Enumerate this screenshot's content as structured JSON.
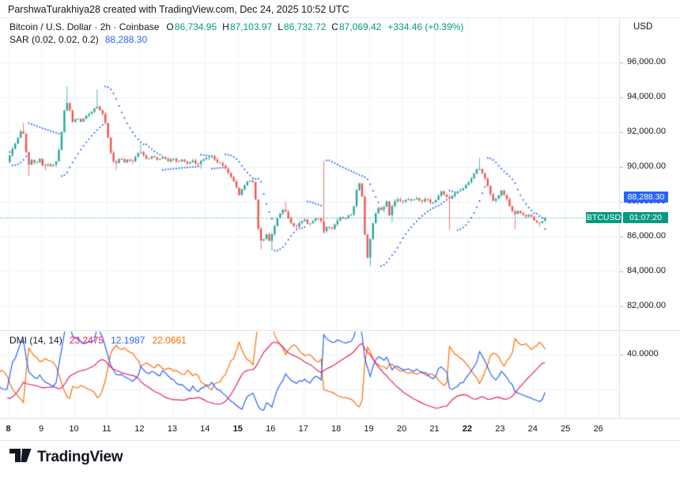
{
  "header": {
    "attribution": "ParshwaTurakhiya28 created with TradingView.com, Dec 24, 2025 10:52 UTC"
  },
  "legend": {
    "title": "Bitcoin / U.S. Dollar · 2h · Coinbase",
    "open_label": "O",
    "open": "86,734.95",
    "high_label": "H",
    "high": "87,103.97",
    "low_label": "L",
    "low": "86,732.72",
    "close_label": "C",
    "close": "87,069.42",
    "change": "+334.46 (+0.39%)",
    "sar_title": "SAR (0.02, 0.02, 0.2)",
    "sar_value": "88,288.30",
    "dmi_title": "DMI (14, 14)",
    "dmi_adx": "23.2475",
    "dmi_plus_di": "12.1987",
    "dmi_minus_di": "22.0661"
  },
  "price_axis": {
    "currency": "USD",
    "ticks": [
      {
        "label": "96,000.00",
        "value": 96000
      },
      {
        "label": "94,000.00",
        "value": 94000
      },
      {
        "label": "92,000.00",
        "value": 92000
      },
      {
        "label": "90,000.00",
        "value": 90000
      },
      {
        "label": "88,000.00",
        "value": 88000
      },
      {
        "label": "86,000.00",
        "value": 86000
      },
      {
        "label": "84,000.00",
        "value": 84000
      },
      {
        "label": "82,000.00",
        "value": 82000
      }
    ],
    "dmi_ticks": [
      {
        "label": "40.0000",
        "value": 40
      }
    ],
    "sar_label": "88,288.30",
    "symbol_label": "BTCUSD",
    "countdown_label": "01:07:20"
  },
  "dmi_value_labels": [
    {
      "text": "23.2475",
      "color": "#e91e63"
    },
    {
      "text": "22.0661",
      "color": "#ff6d00"
    },
    {
      "text": "12.1987",
      "color": "#2962ff"
    }
  ],
  "time_axis": {
    "ticks": [
      {
        "label": "8",
        "day": 8,
        "bold": true
      },
      {
        "label": "9",
        "day": 9,
        "bold": false
      },
      {
        "label": "10",
        "day": 10,
        "bold": false
      },
      {
        "label": "11",
        "day": 11,
        "bold": false
      },
      {
        "label": "12",
        "day": 12,
        "bold": false
      },
      {
        "label": "13",
        "day": 13,
        "bold": false
      },
      {
        "label": "14",
        "day": 14,
        "bold": false
      },
      {
        "label": "15",
        "day": 15,
        "bold": true
      },
      {
        "label": "16",
        "day": 16,
        "bold": false
      },
      {
        "label": "17",
        "day": 17,
        "bold": false
      },
      {
        "label": "18",
        "day": 18,
        "bold": false
      },
      {
        "label": "19",
        "day": 19,
        "bold": false
      },
      {
        "label": "20",
        "day": 20,
        "bold": false
      },
      {
        "label": "21",
        "day": 21,
        "bold": false
      },
      {
        "label": "22",
        "day": 22,
        "bold": true
      },
      {
        "label": "23",
        "day": 23,
        "bold": false
      },
      {
        "label": "24",
        "day": 24,
        "bold": false
      },
      {
        "label": "25",
        "day": 25,
        "bold": false
      },
      {
        "label": "26",
        "day": 26,
        "bold": false
      }
    ]
  },
  "footer": {
    "brand": "TradingView"
  },
  "colors": {
    "text": "#131722",
    "up_green": "#089981",
    "candle_up": "#26a69a",
    "candle_down": "#ef5350",
    "sar_blue": "#2962ff",
    "adx_pink": "#e91e63",
    "di_plus_blue": "#2962ff",
    "di_minus_orange": "#ff6d00",
    "label_teal": "#089981",
    "grid": "#eff2f8",
    "border": "#e0e3eb",
    "tick": "#b2b5be"
  },
  "chart_data": {
    "type": "candlestick",
    "symbol": "BTCUSD",
    "interval": "2h",
    "bars_per_day": 12,
    "warmup_from_day": 5.667,
    "visible_from_day": 7.92,
    "last_day": 24.417,
    "current_price": 87069.42,
    "sar_current": 88288.3,
    "price_axis_range": [
      80600,
      96900
    ],
    "dmi_axis_range": [
      3.6,
      53.6
    ],
    "indicators": {
      "sar": {
        "start": 0.02,
        "increment": 0.02,
        "max": 0.2,
        "last_value": 88288.3
      },
      "dmi": {
        "di_length": 14,
        "adx_smoothing": 14,
        "last_adx": 23.2475,
        "last_plus_di": 12.1987,
        "last_minus_di": 22.0661
      }
    },
    "price_path": [
      [
        5.667,
        90600
      ],
      [
        6.0,
        91100
      ],
      [
        6.3,
        91400
      ],
      [
        6.6,
        90700
      ],
      [
        6.9,
        90100
      ],
      [
        7.2,
        90500
      ],
      [
        7.5,
        90900
      ],
      [
        7.75,
        90200
      ],
      [
        7.9,
        90150
      ],
      [
        8.0,
        90280
      ],
      [
        8.12,
        90850
      ],
      [
        8.25,
        91350
      ],
      [
        8.38,
        91900
      ],
      [
        8.47,
        92200
      ],
      [
        8.55,
        91450
      ],
      [
        8.63,
        89980
      ],
      [
        8.75,
        90420
      ],
      [
        8.88,
        90180
      ],
      [
        9.0,
        90480
      ],
      [
        9.12,
        89980
      ],
      [
        9.25,
        90150
      ],
      [
        9.38,
        90050
      ],
      [
        9.5,
        90350
      ],
      [
        9.62,
        91250
      ],
      [
        9.72,
        92900
      ],
      [
        9.8,
        93820
      ],
      [
        9.9,
        93350
      ],
      [
        10.0,
        92580
      ],
      [
        10.12,
        92850
      ],
      [
        10.25,
        92620
      ],
      [
        10.38,
        92900
      ],
      [
        10.5,
        93050
      ],
      [
        10.62,
        93200
      ],
      [
        10.72,
        93500
      ],
      [
        10.82,
        93280
      ],
      [
        10.92,
        93050
      ],
      [
        11.02,
        92400
      ],
      [
        11.12,
        91250
      ],
      [
        11.22,
        90350
      ],
      [
        11.32,
        90180
      ],
      [
        11.45,
        90550
      ],
      [
        11.58,
        90220
      ],
      [
        11.7,
        90480
      ],
      [
        11.82,
        90250
      ],
      [
        11.95,
        90700
      ],
      [
        12.05,
        90950
      ],
      [
        12.18,
        90620
      ],
      [
        12.3,
        90420
      ],
      [
        12.45,
        90680
      ],
      [
        12.6,
        90380
      ],
      [
        12.75,
        90600
      ],
      [
        12.9,
        90320
      ],
      [
        13.05,
        90550
      ],
      [
        13.2,
        90230
      ],
      [
        13.35,
        90480
      ],
      [
        13.5,
        90180
      ],
      [
        13.65,
        90420
      ],
      [
        13.8,
        90120
      ],
      [
        13.95,
        90380
      ],
      [
        14.1,
        90520
      ],
      [
        14.25,
        90600
      ],
      [
        14.4,
        90280
      ],
      [
        14.55,
        90150
      ],
      [
        14.68,
        89850
      ],
      [
        14.82,
        89480
      ],
      [
        14.95,
        89050
      ],
      [
        15.08,
        88380
      ],
      [
        15.2,
        88800
      ],
      [
        15.32,
        89150
      ],
      [
        15.45,
        89280
      ],
      [
        15.55,
        88950
      ],
      [
        15.62,
        87300
      ],
      [
        15.7,
        85850
      ],
      [
        15.8,
        85680
      ],
      [
        15.9,
        86230
      ],
      [
        16.0,
        85780
      ],
      [
        16.12,
        86300
      ],
      [
        16.25,
        87100
      ],
      [
        16.38,
        87480
      ],
      [
        16.48,
        87550
      ],
      [
        16.58,
        87050
      ],
      [
        16.7,
        86700
      ],
      [
        16.82,
        86550
      ],
      [
        16.95,
        86850
      ],
      [
        17.08,
        87000
      ],
      [
        17.2,
        86680
      ],
      [
        17.35,
        86920
      ],
      [
        17.48,
        87120
      ],
      [
        17.58,
        86900
      ],
      [
        17.66,
        86300
      ],
      [
        17.78,
        86650
      ],
      [
        17.9,
        86420
      ],
      [
        18.02,
        86750
      ],
      [
        18.15,
        87150
      ],
      [
        18.28,
        87000
      ],
      [
        18.42,
        87200
      ],
      [
        18.55,
        87350
      ],
      [
        18.65,
        88500
      ],
      [
        18.73,
        89200
      ],
      [
        18.82,
        88700
      ],
      [
        18.9,
        86400
      ],
      [
        19.0,
        84780
      ],
      [
        19.1,
        86100
      ],
      [
        19.2,
        87050
      ],
      [
        19.32,
        87680
      ],
      [
        19.45,
        87480
      ],
      [
        19.58,
        88050
      ],
      [
        19.66,
        87150
      ],
      [
        19.78,
        87950
      ],
      [
        19.9,
        88120
      ],
      [
        20.05,
        88000
      ],
      [
        20.2,
        88180
      ],
      [
        20.35,
        88050
      ],
      [
        20.5,
        88220
      ],
      [
        20.65,
        88000
      ],
      [
        20.8,
        88250
      ],
      [
        20.95,
        87900
      ],
      [
        21.1,
        88120
      ],
      [
        21.25,
        88600
      ],
      [
        21.38,
        88280
      ],
      [
        21.52,
        88200
      ],
      [
        21.65,
        88450
      ],
      [
        21.8,
        88650
      ],
      [
        21.95,
        88850
      ],
      [
        22.1,
        89150
      ],
      [
        22.25,
        89650
      ],
      [
        22.38,
        89950
      ],
      [
        22.48,
        89750
      ],
      [
        22.58,
        89350
      ],
      [
        22.7,
        88700
      ],
      [
        22.85,
        87950
      ],
      [
        23.0,
        88400
      ],
      [
        23.1,
        88650
      ],
      [
        23.22,
        88250
      ],
      [
        23.35,
        87700
      ],
      [
        23.47,
        87250
      ],
      [
        23.58,
        87500
      ],
      [
        23.7,
        87300
      ],
      [
        23.82,
        87100
      ],
      [
        23.95,
        87300
      ],
      [
        24.07,
        86950
      ],
      [
        24.18,
        86780
      ],
      [
        24.3,
        86850
      ],
      [
        24.42,
        87069
      ]
    ],
    "wick_highs": [
      [
        8.47,
        92520
      ],
      [
        9.8,
        94620
      ],
      [
        10.72,
        94470
      ],
      [
        12.05,
        91300
      ],
      [
        16.45,
        88020
      ],
      [
        17.62,
        90380
      ],
      [
        22.4,
        90520
      ]
    ],
    "wick_lows": [
      [
        8.64,
        89480
      ],
      [
        9.13,
        89800
      ],
      [
        11.3,
        89830
      ],
      [
        13.85,
        89900
      ],
      [
        15.7,
        85270
      ],
      [
        16.02,
        85200
      ],
      [
        19.02,
        84310
      ],
      [
        19.67,
        86820
      ],
      [
        21.42,
        86380
      ],
      [
        23.48,
        86430
      ],
      [
        24.22,
        86580
      ]
    ]
  }
}
